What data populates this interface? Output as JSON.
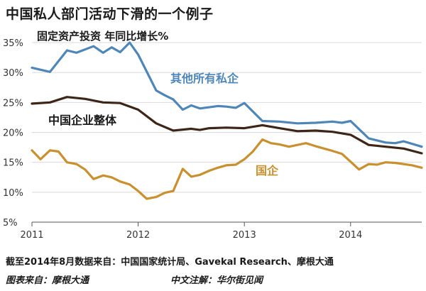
{
  "title": "中国私人部门活动下滑的一个例子",
  "footer": {
    "source": "截至2014年8月数据来自：中国国家统计局、Gavekal Research、摩根大通",
    "credit_left": "图表来自：摩根大通",
    "credit_right": "中文注解：华尔街见闻"
  },
  "colors": {
    "series1": "#4f86b8",
    "series2": "#3d2518",
    "series3": "#c8902f",
    "grid": "#d9d9d9"
  },
  "chart_data": {
    "type": "line",
    "title": "中国私人部门活动下滑的一个例子",
    "subtitle": "固定资产投资 年同比增长%",
    "x_range": [
      2011.0,
      2014.67
    ],
    "x_ticks": [
      2011,
      2012,
      2013,
      2014
    ],
    "x_tick_labels": [
      "2011",
      "2012",
      "2013",
      "2014"
    ],
    "ylim": [
      5,
      35
    ],
    "y_ticks": [
      5,
      10,
      15,
      20,
      25,
      30,
      35
    ],
    "y_tick_labels": [
      "5%",
      "10%",
      "15%",
      "20%",
      "25%",
      "30%",
      "35%"
    ],
    "grid": "horizontal",
    "series": [
      {
        "name": "其他所有私企",
        "x": [
          2011.0,
          2011.17,
          2011.33,
          2011.42,
          2011.58,
          2011.67,
          2011.75,
          2011.83,
          2011.92,
          2012.0,
          2012.17,
          2012.25,
          2012.33,
          2012.42,
          2012.5,
          2012.58,
          2012.67,
          2012.75,
          2012.83,
          2012.92,
          2013.0,
          2013.17,
          2013.33,
          2013.5,
          2013.67,
          2013.83,
          2013.92,
          2014.0,
          2014.17,
          2014.33,
          2014.42,
          2014.5,
          2014.67
        ],
        "y": [
          30.8,
          30.1,
          33.7,
          33.3,
          34.4,
          33.3,
          34.2,
          33.4,
          35.0,
          33.0,
          27.0,
          26.2,
          25.5,
          23.8,
          24.5,
          24.0,
          24.2,
          24.4,
          24.3,
          24.1,
          24.9,
          21.9,
          21.8,
          21.5,
          21.6,
          21.8,
          21.6,
          21.9,
          19.0,
          18.3,
          18.2,
          18.5,
          17.6
        ]
      },
      {
        "name": "中国企业整体",
        "x": [
          2011.0,
          2011.17,
          2011.33,
          2011.5,
          2011.67,
          2011.83,
          2012.0,
          2012.17,
          2012.33,
          2012.5,
          2012.58,
          2012.67,
          2012.83,
          2013.0,
          2013.17,
          2013.33,
          2013.5,
          2013.67,
          2013.83,
          2014.0,
          2014.17,
          2014.33,
          2014.5,
          2014.67
        ],
        "y": [
          24.8,
          25.0,
          25.9,
          25.6,
          25.0,
          24.9,
          23.8,
          21.5,
          20.3,
          20.6,
          20.4,
          20.7,
          20.8,
          20.7,
          21.2,
          20.7,
          20.2,
          20.3,
          20.1,
          19.6,
          17.9,
          17.6,
          17.3,
          16.5
        ]
      },
      {
        "name": "国企",
        "x": [
          2011.0,
          2011.08,
          2011.17,
          2011.25,
          2011.33,
          2011.42,
          2011.5,
          2011.58,
          2011.67,
          2011.75,
          2011.83,
          2011.92,
          2012.0,
          2012.08,
          2012.17,
          2012.25,
          2012.33,
          2012.42,
          2012.5,
          2012.58,
          2012.67,
          2012.75,
          2012.83,
          2012.92,
          2013.0,
          2013.08,
          2013.17,
          2013.25,
          2013.33,
          2013.42,
          2013.5,
          2013.58,
          2013.67,
          2013.75,
          2013.83,
          2013.92,
          2014.0,
          2014.08,
          2014.17,
          2014.25,
          2014.33,
          2014.42,
          2014.5,
          2014.58,
          2014.67
        ],
        "y": [
          17.0,
          15.5,
          17.0,
          16.8,
          15.0,
          14.7,
          13.8,
          12.2,
          12.8,
          12.5,
          11.8,
          11.3,
          10.2,
          8.9,
          9.2,
          9.9,
          10.2,
          13.9,
          12.6,
          12.9,
          13.6,
          14.1,
          14.5,
          14.6,
          15.5,
          16.8,
          18.8,
          18.2,
          18.0,
          17.6,
          17.9,
          18.2,
          17.7,
          17.3,
          16.9,
          16.4,
          15.1,
          13.8,
          14.7,
          14.6,
          15.0,
          14.9,
          14.7,
          14.5,
          14.1
        ]
      }
    ]
  }
}
